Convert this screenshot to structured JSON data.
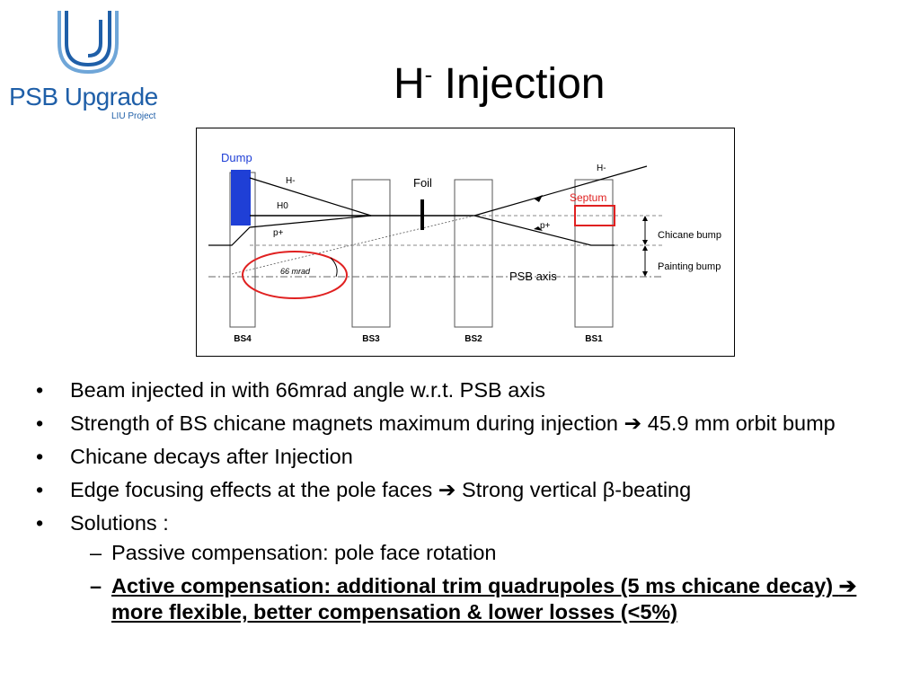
{
  "logo": {
    "name": "PSB Upgrade",
    "sub": "LIU Project",
    "color": "#1f5fa8"
  },
  "slide": {
    "title": "H",
    "title_sup": "-",
    "title_rest": " Injection"
  },
  "diagram": {
    "dump_label": "Dump",
    "hminus_left": "H-",
    "h0_label": "H0",
    "pplus_left": "p+",
    "angle_label": "66 mrad",
    "foil_label": "Foil",
    "hminus_right": "H-",
    "septum_label": "Septum",
    "pplus_right": "p+",
    "chicane_label": "Chicane bump",
    "painting_label": "Painting bump",
    "axis_label": "PSB axis",
    "magnets": [
      "BS4",
      "BS3",
      "BS2",
      "BS1"
    ],
    "colors": {
      "dump": "#1f3fd6",
      "septum": "#e02020",
      "ellipse": "#e02020",
      "dump_text": "#1f3fd6"
    }
  },
  "bullets": [
    {
      "text": "Beam injected in with 66mrad angle w.r.t. PSB axis"
    },
    {
      "pre": "Strength of BS chicane magnets maximum during injection ",
      "arrow": "➔",
      "post": " 45.9 mm orbit bump"
    },
    {
      "text": "Chicane decays after Injection"
    },
    {
      "pre": " Edge focusing effects at the pole faces ",
      "arrow": "➔",
      "post": " Strong vertical β-beating"
    },
    {
      "text": "Solutions :"
    }
  ],
  "sub_bullets": [
    {
      "text": "Passive compensation: pole face rotation"
    },
    {
      "pre": "Active compensation: additional trim quadrupoles (5 ms chicane decay) ",
      "arrow": "➔",
      "post": " more flexible, better compensation & lower losses (<5%)"
    }
  ]
}
